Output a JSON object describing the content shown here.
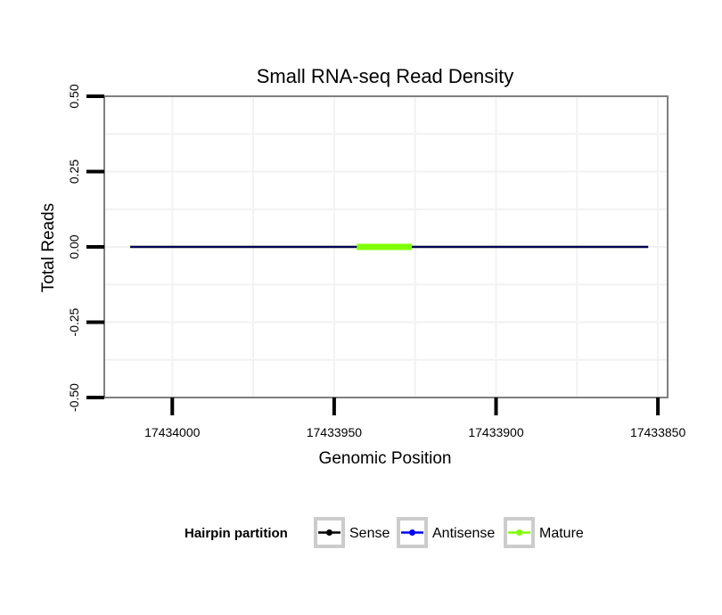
{
  "chart_data": {
    "type": "line",
    "title": "Small RNA-seq Read Density",
    "xlabel": "Genomic Position",
    "ylabel": "Total Reads",
    "xlim": [
      17434021,
      17433847
    ],
    "x_reversed": true,
    "ylim": [
      -0.5,
      0.5
    ],
    "x_ticks": [
      17434000,
      17433950,
      17433900,
      17433850
    ],
    "x_tick_labels": [
      "17434000",
      "17433950",
      "17433900",
      "17433850"
    ],
    "y_ticks": [
      -0.5,
      -0.25,
      0,
      0.25,
      0.5
    ],
    "y_tick_labels": [
      "-0.50",
      "-0.25",
      "0.00",
      "0.25",
      "0.50"
    ],
    "grid": true,
    "series": [
      {
        "name": "Sense",
        "color": "#000000",
        "x": [
          17434013,
          17433853
        ],
        "values": [
          0,
          0
        ]
      },
      {
        "name": "Antisense",
        "color": "#0000ff",
        "x": [
          17434013,
          17433853
        ],
        "values": [
          0,
          0
        ]
      },
      {
        "name": "Mature",
        "color": "#7fff00",
        "x": [
          17433943,
          17433926
        ],
        "values": [
          0,
          0
        ]
      }
    ],
    "legend": {
      "title": "Hairpin partition",
      "position": "bottom",
      "entries": [
        "Sense",
        "Antisense",
        "Mature"
      ]
    }
  }
}
